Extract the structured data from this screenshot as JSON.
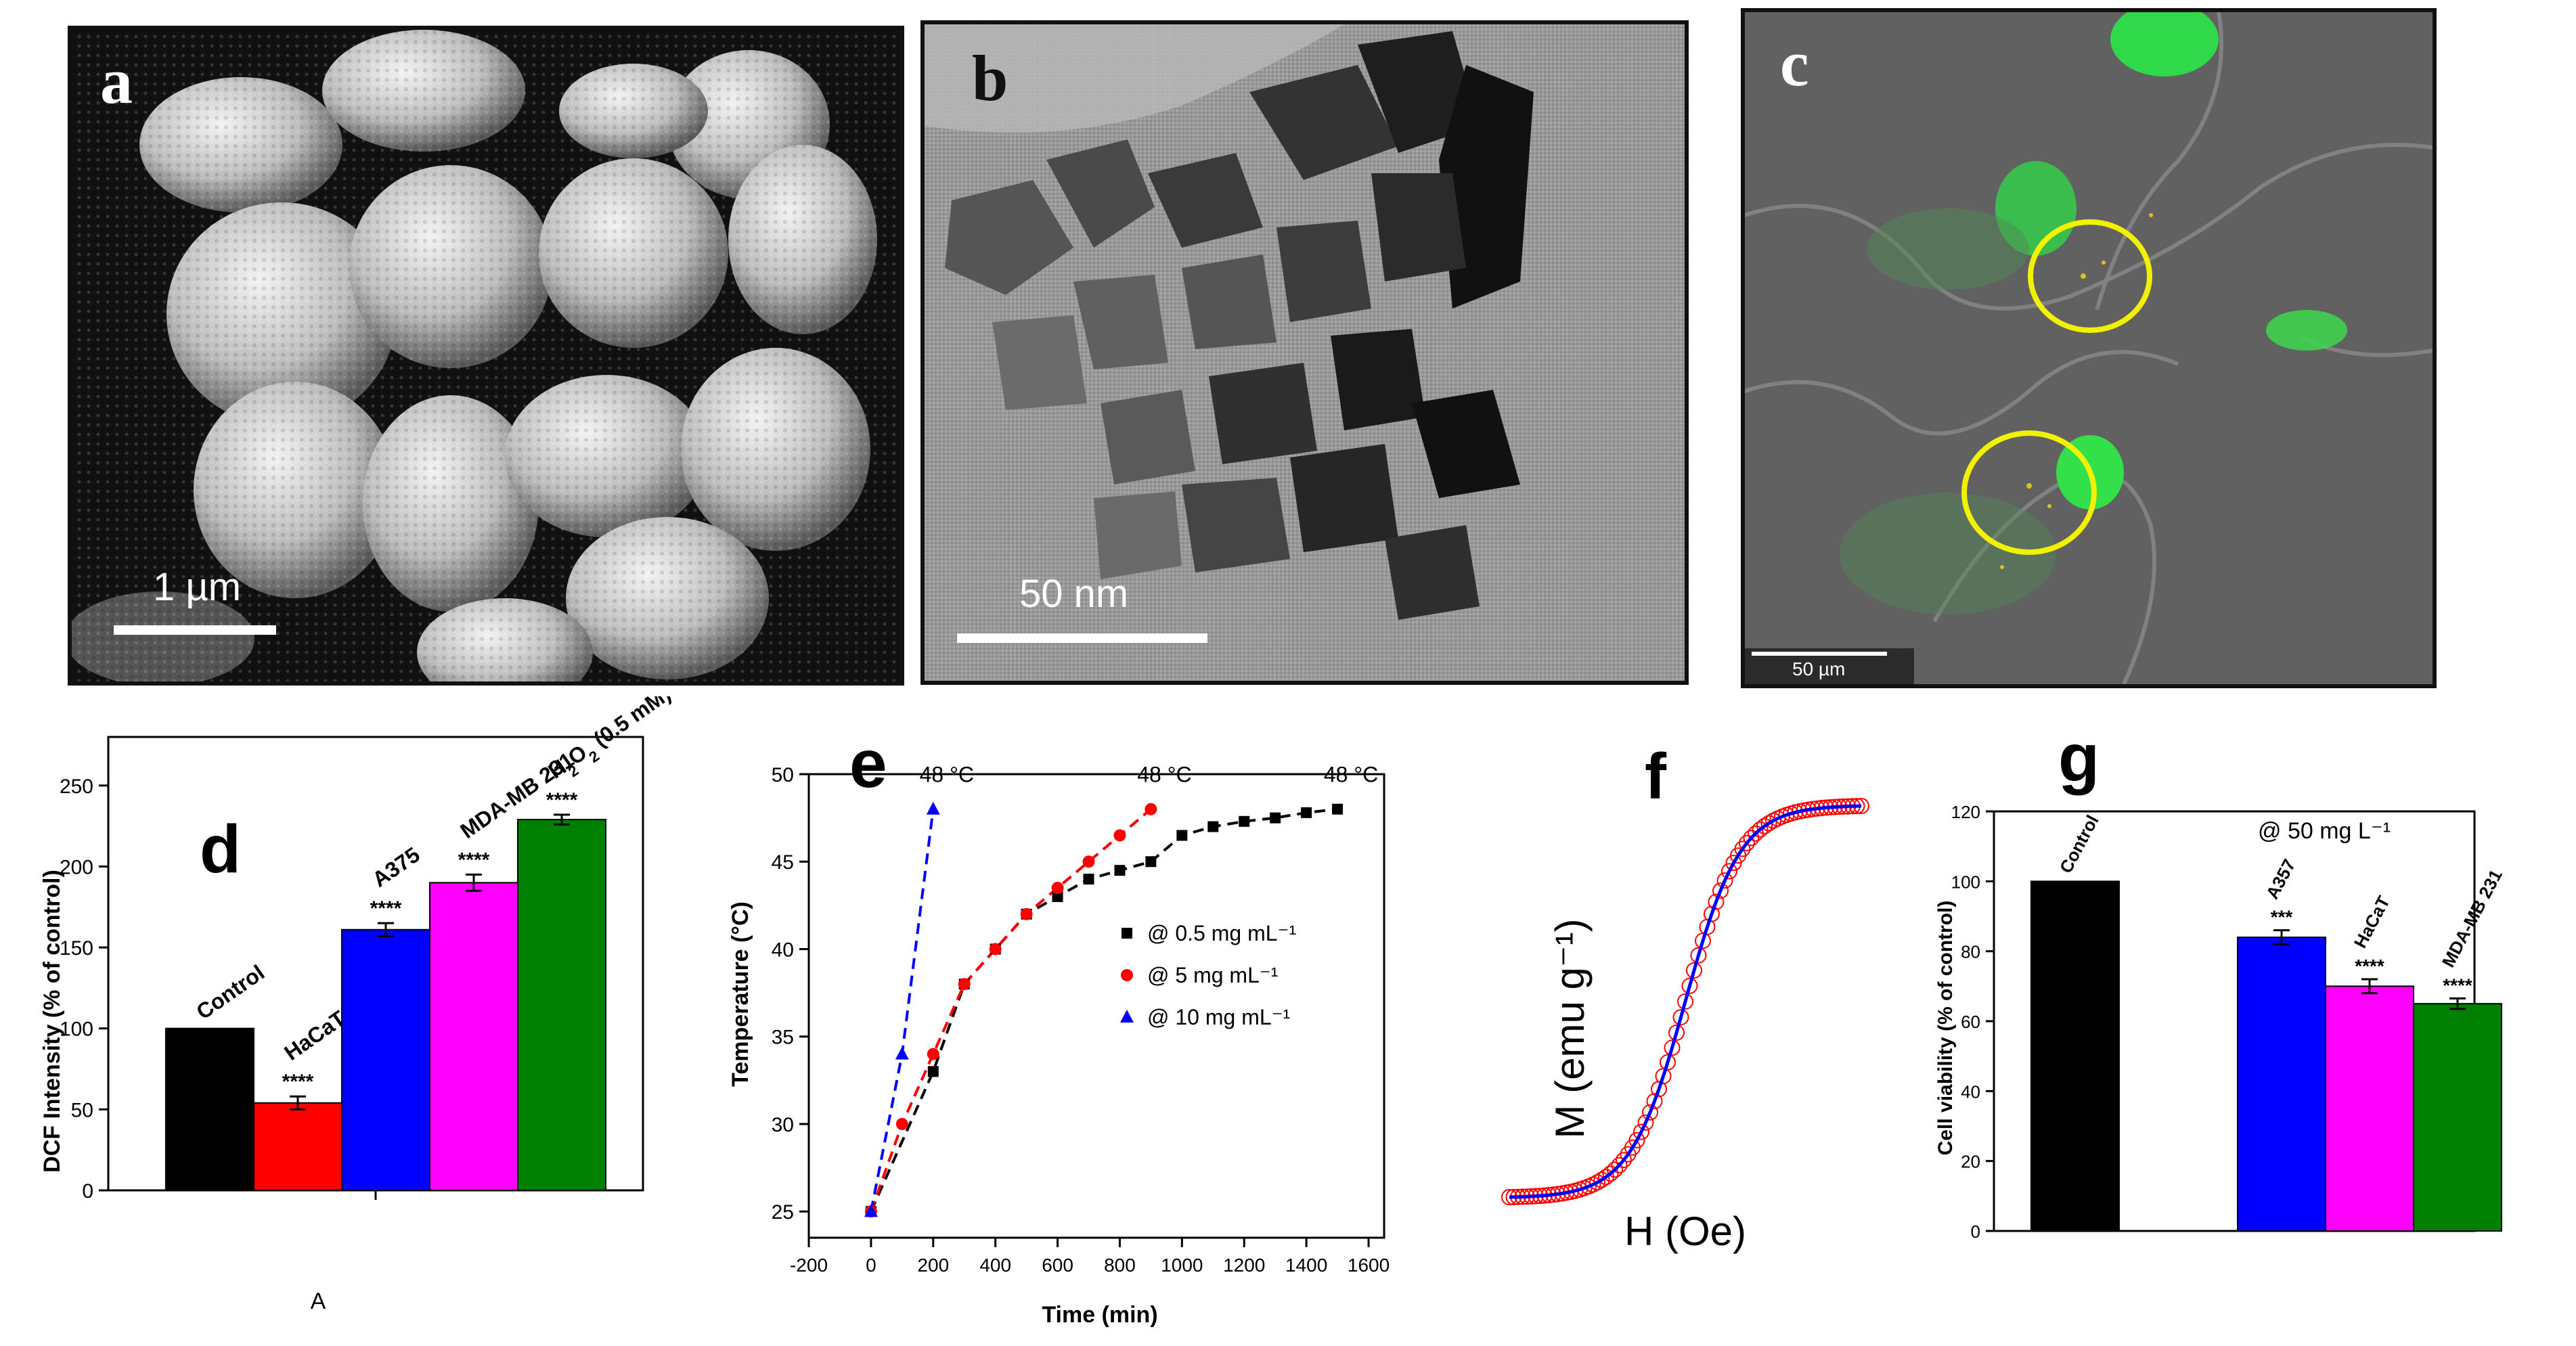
{
  "images": {
    "a": {
      "label": "a",
      "scale": "1 µm",
      "kind": "SEM micrograph"
    },
    "b": {
      "label": "b",
      "scale": "50 nm",
      "kind": "TEM micrograph"
    },
    "c": {
      "label": "c",
      "scale": "50 µm",
      "kind": "fluorescence overlay"
    }
  },
  "colors": {
    "black": "#000000",
    "red": "#ff0000",
    "blue": "#0000ff",
    "magenta": "#ff00ff",
    "green": "#008000"
  },
  "chart_data": [
    {
      "id": "d",
      "label": "d",
      "type": "bar",
      "ylabel": "DCF Intensity (% of control)",
      "xlabel": "A",
      "ylim": [
        0,
        280
      ],
      "yticks": [
        0,
        50,
        100,
        150,
        200,
        250
      ],
      "categories": [
        "Control",
        "HaCaT",
        "A375",
        "MDA-MB 231",
        "H2O2 (0.5 mM)"
      ],
      "values": [
        100,
        54,
        161,
        190,
        229
      ],
      "errors": [
        0,
        4,
        4,
        5,
        3
      ],
      "significance": [
        "",
        "****",
        "****",
        "****",
        "****"
      ],
      "colors": [
        "#000000",
        "#ff0000",
        "#0000ff",
        "#ff00ff",
        "#008000"
      ]
    },
    {
      "id": "e",
      "label": "e",
      "type": "scatter",
      "xlabel": "Time (min)",
      "ylabel": "Temperature (°C)",
      "xlim": [
        -200,
        1650
      ],
      "ylim": [
        23.5,
        50
      ],
      "xticks": [
        -200,
        0,
        200,
        400,
        600,
        800,
        1000,
        1200,
        1400,
        1600
      ],
      "yticks": [
        25,
        30,
        35,
        40,
        45,
        50
      ],
      "legend_position": "center-right",
      "series": [
        {
          "name": "@ 0.5 mg mL⁻¹",
          "marker": "square",
          "color": "#000000",
          "x": [
            0,
            200,
            300,
            400,
            500,
            600,
            700,
            800,
            900,
            1000,
            1100,
            1200,
            1300,
            1400,
            1500
          ],
          "y": [
            25,
            33,
            38,
            40,
            42,
            43,
            44,
            44.5,
            45,
            46.5,
            47,
            47.3,
            47.5,
            47.8,
            48
          ]
        },
        {
          "name": "@ 5 mg mL⁻¹",
          "marker": "circle",
          "color": "#ff0000",
          "x": [
            0,
            100,
            200,
            300,
            400,
            500,
            600,
            700,
            800,
            900
          ],
          "y": [
            25,
            30,
            34,
            38,
            40,
            42,
            43.5,
            45,
            46.5,
            48
          ]
        },
        {
          "name": "@ 10 mg mL⁻¹",
          "marker": "triangle",
          "color": "#0000ff",
          "x": [
            0,
            100,
            200
          ],
          "y": [
            25,
            34,
            48
          ]
        }
      ],
      "annotations": [
        {
          "text": "48 °C",
          "x": 200,
          "y": 48
        },
        {
          "text": "48 °C",
          "x": 900,
          "y": 48
        },
        {
          "text": "48 °C",
          "x": 1500,
          "y": 48
        }
      ]
    },
    {
      "id": "f",
      "label": "f",
      "type": "line",
      "xlabel": "H (Oe)",
      "ylabel": "M (emu g⁻¹)",
      "series": [
        {
          "name": "",
          "color": "#ff0000",
          "style": "open-circles"
        },
        {
          "name": "",
          "color": "#0000ff",
          "style": "line"
        }
      ]
    },
    {
      "id": "g",
      "label": "g",
      "type": "bar",
      "ylabel": "Cell viability (% of control)",
      "annotation": "@ 50 mg L⁻¹",
      "ylim": [
        0,
        120
      ],
      "yticks": [
        0,
        20,
        40,
        60,
        80,
        100,
        120
      ],
      "categories": [
        "Control",
        "A357",
        "HaCaT",
        "MDA-MB 231"
      ],
      "values": [
        100,
        84,
        70,
        65
      ],
      "errors": [
        0,
        2,
        2,
        1.5
      ],
      "significance": [
        "",
        "***",
        "****",
        "****"
      ],
      "colors": [
        "#000000",
        "#0000ff",
        "#ff00ff",
        "#008000"
      ]
    }
  ]
}
